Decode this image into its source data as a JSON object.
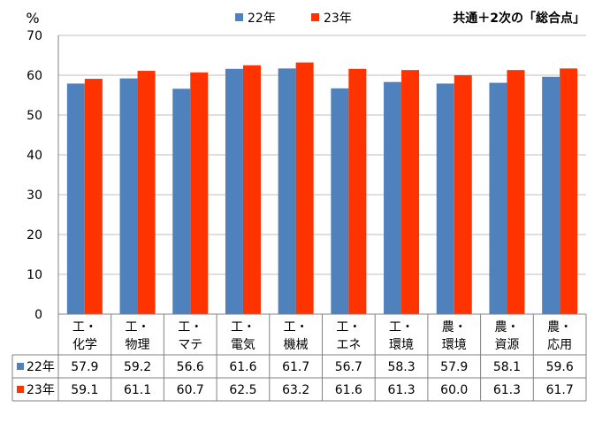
{
  "chart_data": {
    "type": "bar",
    "unit_label": "%",
    "note": "共通＋2次の「総合点」",
    "categories": [
      [
        "工・",
        "化学"
      ],
      [
        "工・",
        "物理"
      ],
      [
        "工・",
        "マテ"
      ],
      [
        "工・",
        "電気"
      ],
      [
        "工・",
        "機械"
      ],
      [
        "工・",
        "エネ"
      ],
      [
        "工・",
        "環境"
      ],
      [
        "農・",
        "環境"
      ],
      [
        "農・",
        "資源"
      ],
      [
        "農・",
        "応用"
      ]
    ],
    "series": [
      {
        "name": "22年",
        "color": "#4F81BD",
        "values": [
          57.9,
          59.2,
          56.6,
          61.6,
          61.7,
          56.7,
          58.3,
          57.9,
          58.1,
          59.6
        ]
      },
      {
        "name": "23年",
        "color": "#FF3300",
        "values": [
          59.1,
          61.1,
          60.7,
          62.5,
          63.2,
          61.6,
          61.3,
          60.0,
          61.3,
          61.7
        ]
      }
    ],
    "ylim": [
      0,
      70
    ],
    "yticks": [
      0,
      10,
      20,
      30,
      40,
      50,
      60,
      70
    ],
    "grid": true,
    "legend": "top-center",
    "data_table": true
  }
}
